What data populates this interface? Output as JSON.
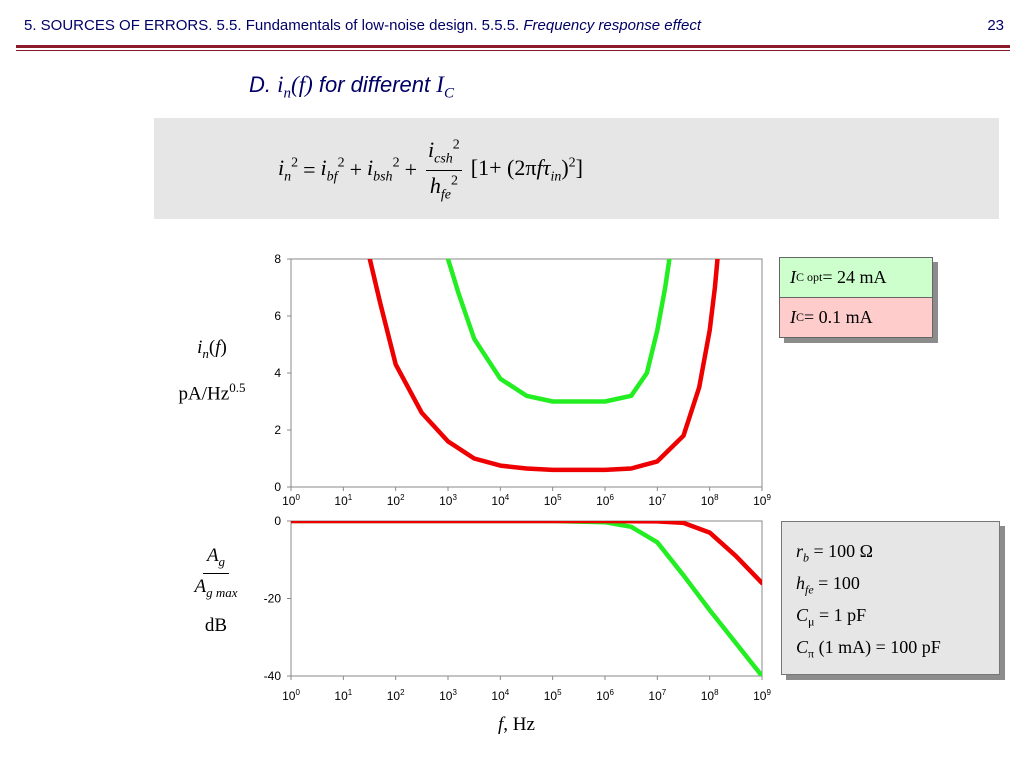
{
  "header": {
    "prefix": "5. SOURCES OF ERRORS. 5.5. Fundamentals of low-noise design. 5.5.5. ",
    "topic": "Frequency response effect",
    "page_number": "23"
  },
  "subtitle": {
    "prefix": "D. ",
    "middle": " for different ",
    "i": "i",
    "n": "n",
    "paren_open": "(",
    "f": "f",
    "paren_close": ")",
    "I": "I",
    "C": "C"
  },
  "formula": {
    "i": "i",
    "n": "n",
    "sq": "2",
    "eq": "=",
    "bf": "bf",
    "bsh": "bsh",
    "plus": "+",
    "num_sub": "csh",
    "den_h": "h",
    "den_sub": "fe",
    "bracket_open": "[1+ (2",
    "pi": "π",
    "f": "f",
    "tau": "τ",
    "in": "in",
    "close": ")",
    "close_sq": "2",
    "bracket_close": "]"
  },
  "ylabel_top": {
    "i": "i",
    "n": "n",
    "paren_open": "(",
    "f": "f",
    "paren_close": ")",
    "units_base": "pA/Hz",
    "units_exp": "0.5"
  },
  "ylabel_bottom": {
    "A": "A",
    "g": "g",
    "g_max": "g max",
    "db": "dB"
  },
  "xlabel": {
    "f": "f",
    "rest": ", Hz"
  },
  "legend": {
    "items": [
      {
        "I": "I",
        "sub": "C opt",
        "rest": " = 24 mA",
        "color": "#ff0000",
        "bg": "#ccffcc"
      },
      {
        "I": "I",
        "sub": "C",
        "rest": " = 0.1 mA",
        "color": "#00ff00",
        "bg": "#ffcccc"
      }
    ]
  },
  "params": {
    "rb": {
      "sym": "r",
      "sub": "b",
      "rest": " = 100 Ω"
    },
    "hfe": {
      "sym": "h",
      "sub": "fe",
      "rest": " = 100"
    },
    "cmu": {
      "sym": "C",
      "sub": "μ",
      "rest": " = 1 pF"
    },
    "cpi": {
      "sym": "C",
      "sub": "π",
      "rest": " (1 mA) = 100 pF"
    }
  },
  "colors": {
    "red": "#ee0000",
    "green": "#22ee22",
    "title": "#000066",
    "rule": "#8b1a2b"
  },
  "chart_data": [
    {
      "type": "line",
      "xscale": "log",
      "xlim": [
        1,
        1000000000
      ],
      "ylim": [
        0,
        8
      ],
      "x_tick_labels": [
        "10",
        "10",
        "10",
        "10",
        "10",
        "10",
        "10",
        "10",
        "10",
        "10"
      ],
      "x_tick_exponents": [
        "0",
        "1",
        "2",
        "3",
        "4",
        "5",
        "6",
        "7",
        "8",
        "9"
      ],
      "y_ticks": [
        0,
        2,
        4,
        6,
        8
      ],
      "y_tick_labels": [
        "0",
        "2",
        "4",
        "6",
        "8"
      ],
      "series": [
        {
          "color": "#ee0000",
          "points": [
            [
              32,
              8
            ],
            [
              50,
              6.5
            ],
            [
              100,
              4.3
            ],
            [
              316,
              2.6
            ],
            [
              1000,
              1.6
            ],
            [
              3162,
              1.0
            ],
            [
              10000,
              0.75
            ],
            [
              31623,
              0.65
            ],
            [
              100000,
              0.6
            ],
            [
              1000000,
              0.6
            ],
            [
              3162278,
              0.65
            ],
            [
              10000000,
              0.9
            ],
            [
              31622777,
              1.8
            ],
            [
              63095734,
              3.5
            ],
            [
              100000000,
              5.5
            ],
            [
              125892541,
              7
            ],
            [
              141253754,
              8
            ]
          ]
        },
        {
          "color": "#22ee22",
          "points": [
            [
              1000,
              8
            ],
            [
              1585,
              6.8
            ],
            [
              3162,
              5.2
            ],
            [
              10000,
              3.8
            ],
            [
              31623,
              3.2
            ],
            [
              100000,
              3.0
            ],
            [
              1000000,
              3.0
            ],
            [
              3162278,
              3.2
            ],
            [
              6309573,
              4.0
            ],
            [
              10000000,
              5.5
            ],
            [
              14125375,
              7
            ],
            [
              16982437,
              8
            ]
          ]
        }
      ]
    },
    {
      "type": "line",
      "xscale": "log",
      "xlim": [
        1,
        1000000000
      ],
      "ylim": [
        -40,
        0
      ],
      "x_tick_labels": [
        "10",
        "10",
        "10",
        "10",
        "10",
        "10",
        "10",
        "10",
        "10",
        "10"
      ],
      "x_tick_exponents": [
        "0",
        "1",
        "2",
        "3",
        "4",
        "5",
        "6",
        "7",
        "8",
        "9"
      ],
      "y_ticks": [
        0,
        -20,
        -40
      ],
      "y_tick_labels": [
        "0",
        "-20",
        "-40"
      ],
      "series": [
        {
          "color": "#ee0000",
          "points": [
            [
              1,
              0
            ],
            [
              1000000,
              0
            ],
            [
              10000000,
              -0.1
            ],
            [
              31622777,
              -0.5
            ],
            [
              100000000,
              -3
            ],
            [
              316227766,
              -9
            ],
            [
              1000000000,
              -16
            ]
          ]
        },
        {
          "color": "#22ee22",
          "points": [
            [
              1,
              0
            ],
            [
              100000,
              0
            ],
            [
              1000000,
              -0.3
            ],
            [
              3162278,
              -1.5
            ],
            [
              10000000,
              -5.5
            ],
            [
              31622777,
              -14
            ],
            [
              100000000,
              -23
            ],
            [
              1000000000,
              -40
            ]
          ]
        }
      ]
    }
  ]
}
